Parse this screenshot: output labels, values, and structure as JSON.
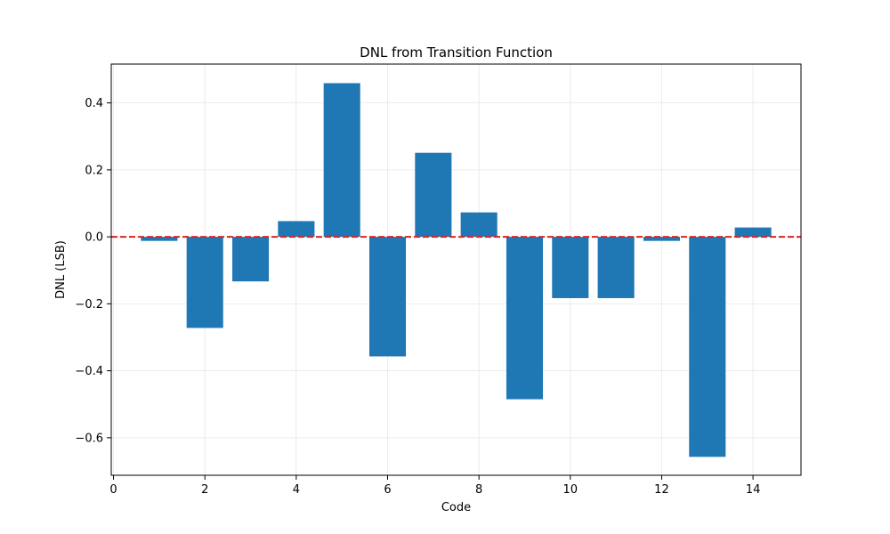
{
  "chart_data": {
    "type": "bar",
    "title": "DNL from Transition Function",
    "xlabel": "Code",
    "ylabel": "DNL (LSB)",
    "x": [
      1,
      2,
      3,
      4,
      5,
      6,
      7,
      8,
      9,
      10,
      11,
      12,
      13,
      14
    ],
    "values": [
      -0.012,
      -0.272,
      -0.133,
      0.047,
      0.459,
      -0.357,
      0.251,
      0.073,
      -0.485,
      -0.183,
      -0.183,
      -0.012,
      -0.657,
      0.028
    ],
    "xlim": [
      -0.05,
      15.05
    ],
    "ylim": [
      -0.712,
      0.516
    ],
    "xticks": [
      0,
      2,
      4,
      6,
      8,
      10,
      12,
      14
    ],
    "xtick_labels": [
      "0",
      "2",
      "4",
      "6",
      "8",
      "10",
      "12",
      "14"
    ],
    "yticks": [
      -0.6,
      -0.4,
      -0.2,
      0.0,
      0.2,
      0.4
    ],
    "ytick_labels": [
      "−0.6",
      "−0.4",
      "−0.2",
      "0.0",
      "0.2",
      "0.4"
    ],
    "bar_width": 0.8,
    "bar_color": "#1f77b4",
    "reference_line": {
      "y": 0,
      "color": "#d62728",
      "style": "dashed"
    },
    "grid": true
  }
}
